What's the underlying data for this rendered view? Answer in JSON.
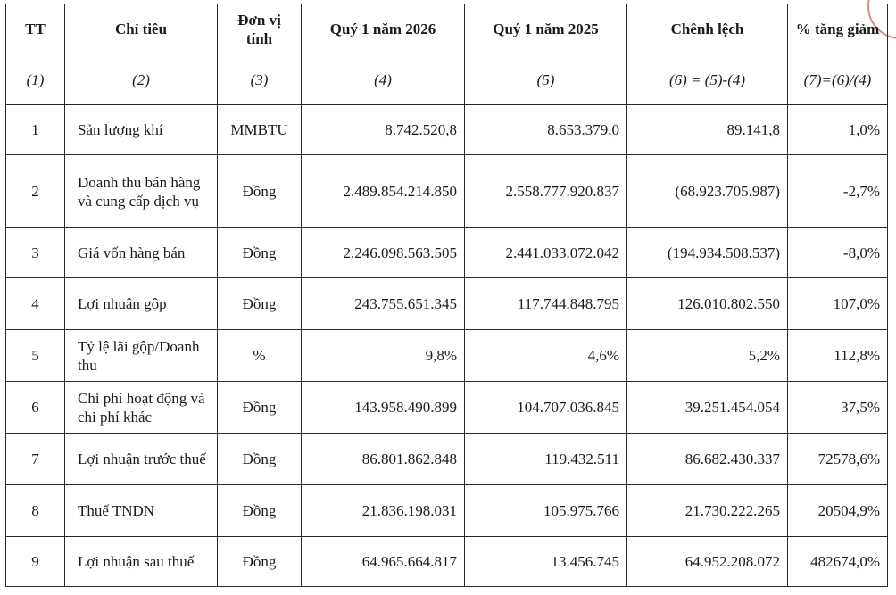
{
  "header": {
    "tt": "TT",
    "chi_tieu": "Chỉ tiêu",
    "don_vi_tinh": "Đơn vị tính",
    "q1_2026": "Quý 1 năm 2026",
    "q1_2025": "Quý 1 năm 2025",
    "chenh_lech": "Chênh lệch",
    "pct": "% tăng giảm"
  },
  "index_row": [
    "(1)",
    "(2)",
    "(3)",
    "(4)",
    "(5)",
    "(6) = (5)-(4)",
    "(7)=(6)/(4)"
  ],
  "rows": [
    {
      "tt": "1",
      "name": "Sản lượng khí",
      "unit": "MMBTU",
      "q2026": "8.742.520,8",
      "q2025": "8.653.379,0",
      "diff": "89.141,8",
      "pct": "1,0%"
    },
    {
      "tt": "2",
      "name": "Doanh thu bán hàng và cung cấp dịch vụ",
      "unit": "Đồng",
      "q2026": "2.489.854.214.850",
      "q2025": "2.558.777.920.837",
      "diff": "(68.923.705.987)",
      "pct": "-2,7%"
    },
    {
      "tt": "3",
      "name": "Giá vốn hàng bán",
      "unit": "Đồng",
      "q2026": "2.246.098.563.505",
      "q2025": "2.441.033.072.042",
      "diff": "(194.934.508.537)",
      "pct": "-8,0%"
    },
    {
      "tt": "4",
      "name": "Lợi nhuận gộp",
      "unit": "Đồng",
      "q2026": "243.755.651.345",
      "q2025": "117.744.848.795",
      "diff": "126.010.802.550",
      "pct": "107,0%"
    },
    {
      "tt": "5",
      "name": "Tỷ lệ lãi gộp/Doanh thu",
      "unit": "%",
      "q2026": "9,8%",
      "q2025": "4,6%",
      "diff": "5,2%",
      "pct": "112,8%"
    },
    {
      "tt": "6",
      "name": "Chi phí hoạt động và chi phí khác",
      "unit": "Đồng",
      "q2026": "143.958.490.899",
      "q2025": "104.707.036.845",
      "diff": "39.251.454.054",
      "pct": "37,5%"
    },
    {
      "tt": "7",
      "name": "Lợi nhuận trước thuế",
      "unit": "Đồng",
      "q2026": "86.801.862.848",
      "q2025": "119.432.511",
      "diff": "86.682.430.337",
      "pct": "72578,6%"
    },
    {
      "tt": "8",
      "name": "Thuế TNDN",
      "unit": "Đồng",
      "q2026": "21.836.198.031",
      "q2025": "105.975.766",
      "diff": "21.730.222.265",
      "pct": "20504,9%"
    },
    {
      "tt": "9",
      "name": "Lợi nhuận sau thuế",
      "unit": "Đồng",
      "q2026": "64.965.664.817",
      "q2025": "13.456.745",
      "diff": "64.952.208.072",
      "pct": "482674,0%"
    }
  ]
}
